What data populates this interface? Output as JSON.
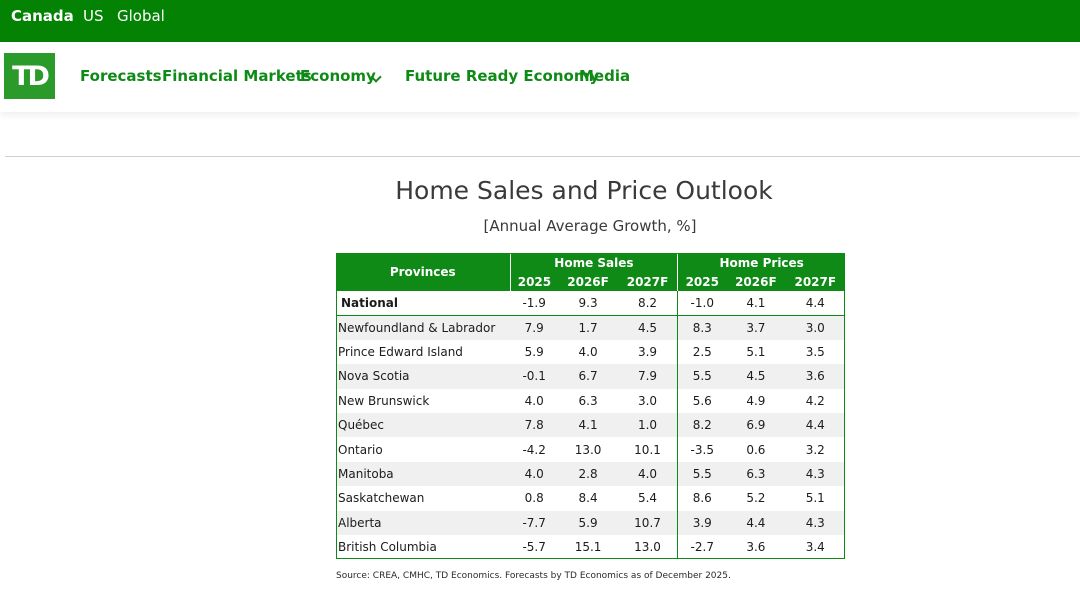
{
  "regions": [
    "Canada",
    "US",
    "Global"
  ],
  "logo_text": "TD",
  "nav": {
    "items": [
      "Forecasts",
      "Financial Markets",
      "Economy",
      "Future Ready Economy",
      "Media"
    ]
  },
  "title": "Home Sales and Price Outlook",
  "subtitle": "[Annual Average Growth, %]",
  "table": {
    "provinces_header": "Provinces",
    "group_sales": "Home Sales",
    "group_prices": "Home Prices",
    "years": [
      "2025",
      "2026F",
      "2027F"
    ],
    "rows": [
      {
        "name": "National",
        "sales": [
          "-1.9",
          "9.3",
          "8.2"
        ],
        "prices": [
          "-1.0",
          "4.1",
          "4.4"
        ]
      },
      {
        "name": "Newfoundland & Labrador",
        "sales": [
          "7.9",
          "1.7",
          "4.5"
        ],
        "prices": [
          "8.3",
          "3.7",
          "3.0"
        ]
      },
      {
        "name": "Prince Edward Island",
        "sales": [
          "5.9",
          "4.0",
          "3.9"
        ],
        "prices": [
          "2.5",
          "5.1",
          "3.5"
        ]
      },
      {
        "name": "Nova Scotia",
        "sales": [
          "-0.1",
          "6.7",
          "7.9"
        ],
        "prices": [
          "5.5",
          "4.5",
          "3.6"
        ]
      },
      {
        "name": "New Brunswick",
        "sales": [
          "4.0",
          "6.3",
          "3.0"
        ],
        "prices": [
          "5.6",
          "4.9",
          "4.2"
        ]
      },
      {
        "name": "Québec",
        "sales": [
          "7.8",
          "4.1",
          "1.0"
        ],
        "prices": [
          "8.2",
          "6.9",
          "4.4"
        ]
      },
      {
        "name": "Ontario",
        "sales": [
          "-4.2",
          "13.0",
          "10.1"
        ],
        "prices": [
          "-3.5",
          "0.6",
          "3.2"
        ]
      },
      {
        "name": "Manitoba",
        "sales": [
          "4.0",
          "2.8",
          "4.0"
        ],
        "prices": [
          "5.5",
          "6.3",
          "4.3"
        ]
      },
      {
        "name": "Saskatchewan",
        "sales": [
          "0.8",
          "8.4",
          "5.4"
        ],
        "prices": [
          "8.6",
          "5.2",
          "5.1"
        ]
      },
      {
        "name": "Alberta",
        "sales": [
          "-7.7",
          "5.9",
          "10.7"
        ],
        "prices": [
          "3.9",
          "4.4",
          "4.3"
        ]
      },
      {
        "name": "British Columbia",
        "sales": [
          "-5.7",
          "15.1",
          "13.0"
        ],
        "prices": [
          "-2.7",
          "3.6",
          "3.4"
        ]
      }
    ]
  },
  "source": "Source: CREA, CMHC, TD Economics. Forecasts by TD Economics as of December 2025.",
  "colors": {
    "brand_green": "#038203",
    "table_green": "#0f8a16",
    "logo_green": "#2a9a2a"
  }
}
